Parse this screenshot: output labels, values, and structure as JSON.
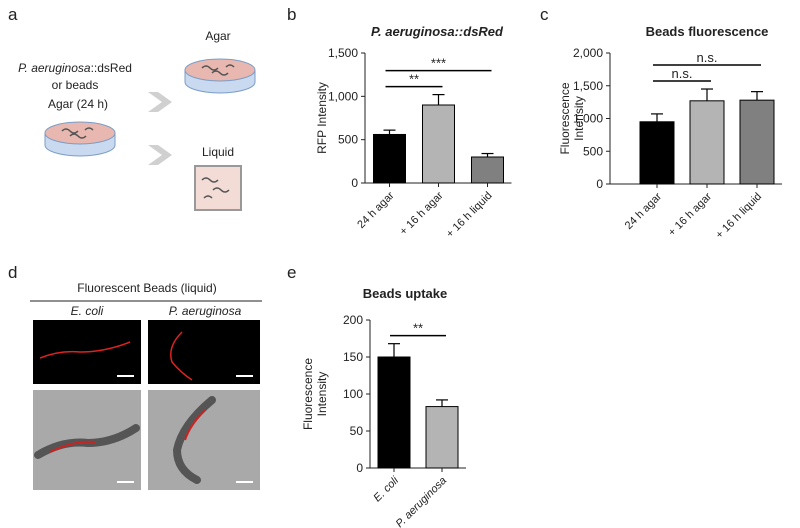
{
  "panel_labels": [
    "a",
    "b",
    "c",
    "d",
    "e"
  ],
  "diagram": {
    "source": [
      "P. aeruginosa",
      "::dsRed"
    ],
    "source_line2": "or beads",
    "start": "Agar (24 h)",
    "agar": "Agar",
    "liquid": "Liquid"
  },
  "micrographs": {
    "title": "Fluorescent Beads (liquid)",
    "columns": [
      "E. coli",
      "P. aeruginosa"
    ]
  },
  "chart_data": [
    {
      "type": "bar",
      "title": "P. aeruginosa::dsRed",
      "ylabel": [
        "RFP Intensity"
      ],
      "categories": [
        "24 h agar",
        "+ 16 h agar",
        "+ 16 h liquid"
      ],
      "values": [
        560,
        900,
        300
      ],
      "errors": [
        50,
        120,
        40
      ],
      "colors": [
        "#000000",
        "#b4b4b4",
        "#808080"
      ],
      "ylim": [
        0,
        1500
      ],
      "yticks": [
        0,
        500,
        {
          "value": 1000,
          "label": "1,000"
        },
        {
          "value": 1500,
          "label": "1,500"
        }
      ],
      "annotations": [
        {
          "text": "**",
          "pair": [
            "24 h agar",
            "+ 16 h agar"
          ]
        },
        {
          "text": "***",
          "pair": [
            "24 h agar",
            "+ 16 h liquid"
          ]
        }
      ]
    },
    {
      "type": "bar",
      "title": "Beads fluorescence",
      "ylabel": [
        "Fluorescence",
        "Intensity"
      ],
      "categories": [
        "24 h agar",
        "+ 16 h agar",
        "+ 16 h liquid"
      ],
      "values": [
        950,
        1270,
        1280
      ],
      "errors": [
        120,
        180,
        130
      ],
      "colors": [
        "#000000",
        "#b4b4b4",
        "#808080"
      ],
      "ylim": [
        0,
        2000
      ],
      "yticks": [
        0,
        500,
        {
          "value": 1000,
          "label": "1,000"
        },
        {
          "value": 1500,
          "label": "1,500"
        },
        {
          "value": 2000,
          "label": "2,000"
        }
      ],
      "annotations": [
        {
          "text": "n.s.",
          "pair": [
            "24 h agar",
            "+ 16 h agar"
          ]
        },
        {
          "text": "n.s.",
          "pair": [
            "24 h agar",
            "+ 16 h liquid"
          ]
        }
      ]
    },
    {
      "type": "bar",
      "title": "Beads uptake",
      "ylabel": [
        "Fluorescence",
        "Intensity"
      ],
      "categories": [
        "E. coli",
        "P. aeruginosa"
      ],
      "values": [
        150,
        83
      ],
      "errors": [
        18,
        9
      ],
      "colors": [
        "#000000",
        "#b4b4b4"
      ],
      "ylim": [
        0,
        200
      ],
      "yticks": [
        0,
        50,
        100,
        150,
        200
      ],
      "annotations": [
        {
          "text": "**",
          "pair": [
            "E. coli",
            "P. aeruginosa"
          ]
        }
      ]
    }
  ]
}
